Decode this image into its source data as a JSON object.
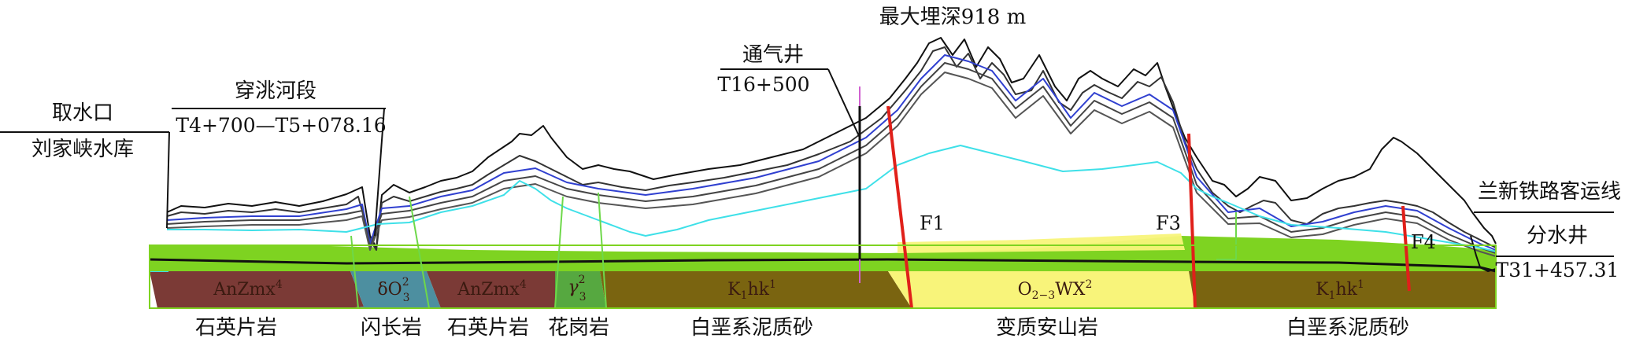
{
  "labels": {
    "max_depth": "最大埋深918 m",
    "intake": "取水口",
    "reservoir": "刘家峡水库",
    "river_crossing": "穿洮河段",
    "river_crossing_station": "T4+700—T5+078.16",
    "vent_shaft": "通气井",
    "vent_shaft_station": "T16+500",
    "railway": "兰新铁路客运线",
    "diversion_shaft": "分水井",
    "diversion_shaft_station": "T31+457.31"
  },
  "faults": {
    "f1": "F1",
    "f3": "F3",
    "f4": "F4"
  },
  "units": {
    "anzmx_left": {
      "base": "AnZmx",
      "sup": "4"
    },
    "diorite": {
      "base": "δO",
      "sup": "2",
      "sub": "3"
    },
    "anzmx_right": {
      "base": "AnZmx",
      "sup": "4"
    },
    "granite": {
      "base": "γ",
      "sup": "2",
      "sub": "3"
    },
    "k1hk_left": {
      "base": "K",
      "sub": "1",
      "rest": "hk",
      "sup": "1"
    },
    "o23wx": {
      "base": "O",
      "sub": "2−3",
      "rest": "WX",
      "sup": "2"
    },
    "k1hk_right": {
      "base": "K",
      "sub": "1",
      "rest": "hk",
      "sup": "1"
    }
  },
  "rocks": {
    "quartz_schist_1": "石英片岩",
    "diorite": "闪长岩",
    "quartz_schist_2": "石英片岩",
    "granite": "花岗岩",
    "cretaceous_sandstone_1": "白垩系泥质砂",
    "meta_andesite": "变质安山岩",
    "cretaceous_sandstone_2": "白垩系泥质砂"
  },
  "colors": {
    "anzmx": "#7b3a36",
    "diorite": "#4d8fa0",
    "granite": "#56a840",
    "k1hk": "#7a6410",
    "o23wx": "#f8f47a",
    "green_band": "#7ed321",
    "cyan_line": "#3ee0e8",
    "fault": "#e0201a"
  }
}
